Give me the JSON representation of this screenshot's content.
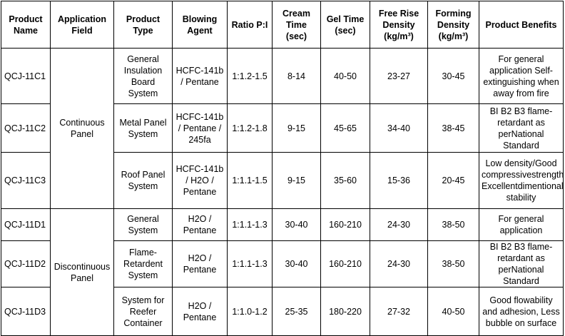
{
  "table": {
    "headers": [
      "Product Name",
      "Application Field",
      "Product Type",
      "Blowing Agent",
      "Ratio P:I",
      "Cream Time (sec)",
      "Gel Time (sec)",
      "Free Rise Density (kg/m³)",
      "Forming Density (kg/m³)",
      "Product Benefits"
    ],
    "groups": [
      {
        "application_field": "Continuous Panel"
      },
      {
        "application_field": "Discontinuous Panel"
      }
    ],
    "rows": [
      {
        "product_name": "QCJ-11C1",
        "product_type": "General Insulation Board System",
        "blowing_agent": "HCFC-141b / Pentane",
        "ratio": "1:1.2-1.5",
        "cream_time": "8-14",
        "gel_time": "40-50",
        "free_rise_density": "23-27",
        "forming_density": "30-45",
        "benefits": "For general application Self-extinguishing when away from fire"
      },
      {
        "product_name": "QCJ-11C2",
        "product_type": "Metal Panel System",
        "blowing_agent": "HCFC-141b / Pentane / 245fa",
        "ratio": "1:1.2-1.8",
        "cream_time": "9-15",
        "gel_time": "45-65",
        "free_rise_density": "34-40",
        "forming_density": "38-45",
        "benefits": "BI B2 B3 flame-retardant as perNational Standard"
      },
      {
        "product_name": "QCJ-11C3",
        "product_type": "Roof Panel System",
        "blowing_agent": "HCFC-141b / H2O / Pentane",
        "ratio": "1:1.1-1.5",
        "cream_time": "9-15",
        "gel_time": "35-60",
        "free_rise_density": "15-36",
        "forming_density": "20-45",
        "benefits": "Low density/Good compressivestrength, Excellentdimentional stability"
      },
      {
        "product_name": "QCJ-11D1",
        "product_type": "General System",
        "blowing_agent": "H2O / Pentane",
        "ratio": "1:1.1-1.3",
        "cream_time": "30-40",
        "gel_time": "160-210",
        "free_rise_density": "24-30",
        "forming_density": "38-50",
        "benefits": "For general application"
      },
      {
        "product_name": "QCJ-11D2",
        "product_type": "Flame-Retardent System",
        "blowing_agent": "H2O / Pentane",
        "ratio": "1:1.1-1.3",
        "cream_time": "30-40",
        "gel_time": "160-210",
        "free_rise_density": "24-30",
        "forming_density": "38-50",
        "benefits": "BI B2 B3 flame-retardant as perNational Standard"
      },
      {
        "product_name": "QCJ-11D3",
        "product_type": "System for Reefer Container",
        "blowing_agent": "H2O / Pentane",
        "ratio": "1:1.0-1.2",
        "cream_time": "25-35",
        "gel_time": "180-220",
        "free_rise_density": "27-32",
        "forming_density": "40-50",
        "benefits": "Good flowability and adhesion, Less bubble on surface"
      }
    ]
  }
}
